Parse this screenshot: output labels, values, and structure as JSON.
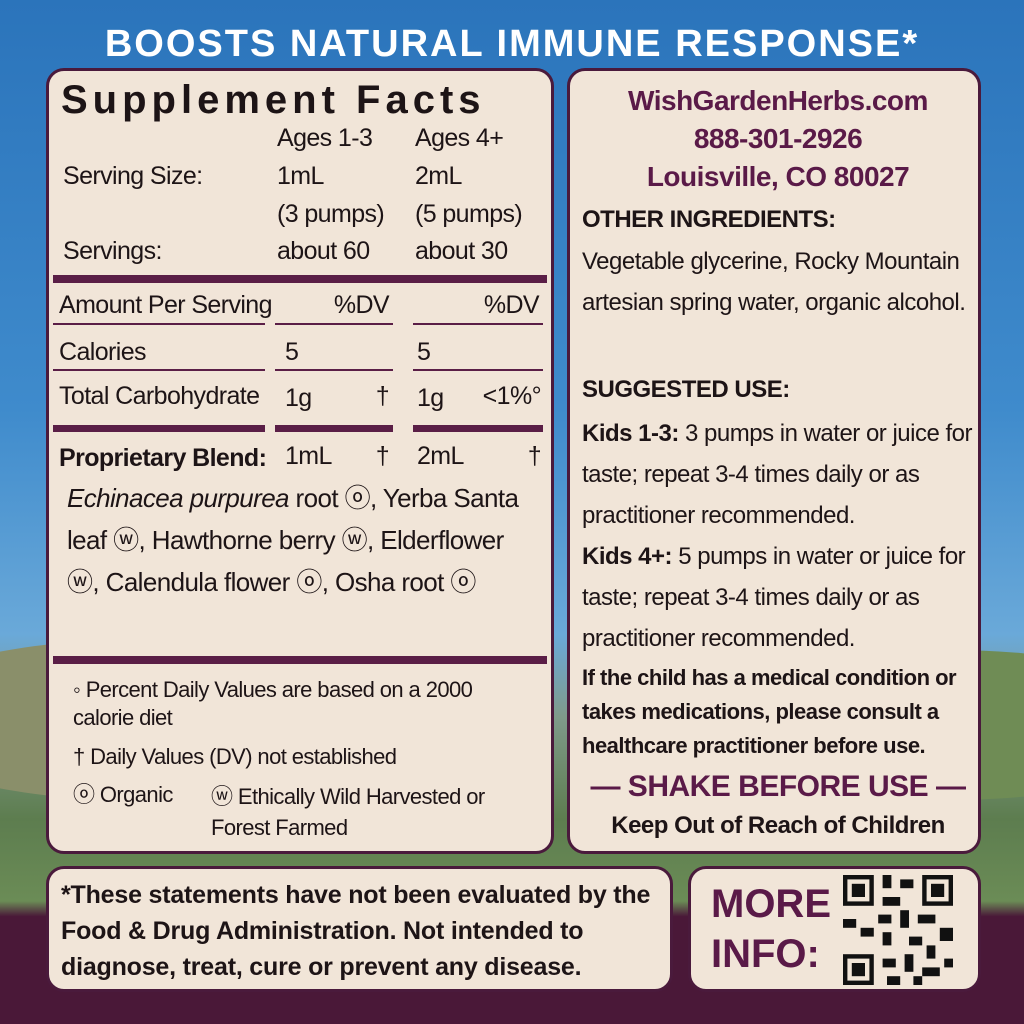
{
  "header": {
    "title": "BOOSTS NATURAL IMMUNE RESPONSE*"
  },
  "supplement_facts": {
    "title": "Supplement Facts",
    "columns": [
      "Ages 1-3",
      "Ages 4+"
    ],
    "serving_size": {
      "label": "Serving Size:",
      "values": [
        [
          "1mL",
          "(3 pumps)"
        ],
        [
          "2mL",
          "(5 pumps)"
        ]
      ]
    },
    "servings": {
      "label": "Servings:",
      "values": [
        "about 60",
        "about 30"
      ]
    },
    "amount_header": {
      "label": "Amount Per Serving",
      "values": [
        "%DV",
        "%DV"
      ]
    },
    "rows": [
      {
        "label": "Calories",
        "amounts": [
          "5",
          "5"
        ]
      },
      {
        "label": "Total Carbohydrate",
        "amounts": [
          "1g",
          "1g"
        ],
        "dv": [
          "†",
          "<1%°"
        ]
      },
      {
        "label": "Proprietary Blend:",
        "amounts": [
          "1mL",
          "2mL"
        ],
        "dv": [
          "†",
          "†"
        ]
      }
    ],
    "ingredients": {
      "latin": "Echinacea purpurea",
      "text": "root ⓞ, Yerba Santa leaf ⓦ, Hawthorne berry ⓦ, Elderflower ⓦ, Calendula flower ⓞ, Osha root ⓞ"
    },
    "footnotes": [
      "◦ Percent Daily Values are based on a 2000 calorie diet",
      "† Daily Values (DV) not established"
    ],
    "legend": [
      {
        "symbol": "ⓞ",
        "label": "Organic"
      },
      {
        "symbol": "ⓦ",
        "label": "Ethically Wild Harvested or Forest Farmed"
      }
    ]
  },
  "contact": [
    "WishGardenHerbs.com",
    "888-301-2926",
    "Louisville, CO 80027"
  ],
  "other_ingredients": {
    "heading": "OTHER INGREDIENTS:",
    "text": "Vegetable glycerine, Rocky Mountain artesian spring water, organic alcohol."
  },
  "suggested_use": {
    "heading": "SUGGESTED USE:",
    "items": [
      {
        "label": "Kids 1-3:",
        "text": "3 pumps in water or juice for taste; repeat 3-4 times daily or as practitioner recommended."
      },
      {
        "label": "Kids 4+:",
        "text": "5 pumps in water or juice for taste; repeat 3-4 times daily or as practitioner recommended."
      }
    ]
  },
  "warning": "If the child has a medical condition or takes medications, please consult a healthcare practitioner before use.",
  "shake": "— SHAKE BEFORE USE —",
  "keep_out": "Keep Out of Reach of Children",
  "disclaimer": "*These statements have not been evaluated by the Food & Drug Administration. Not intended to diagnose, treat, cure or prevent any disease.",
  "more_info": "MORE INFO:"
}
